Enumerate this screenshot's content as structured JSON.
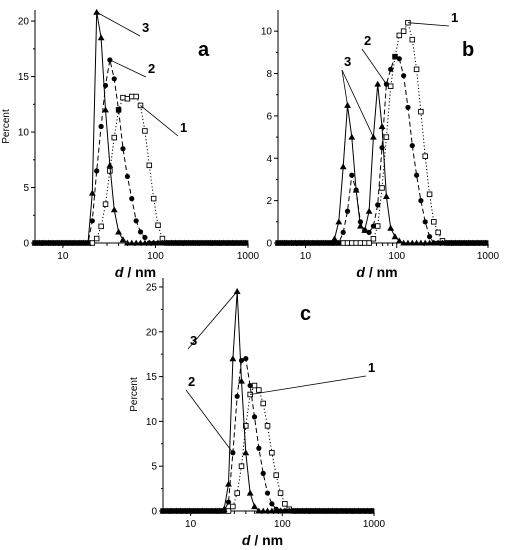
{
  "chart_data": [
    {
      "type": "line",
      "panel_label": "a",
      "xlabel_var": "d",
      "xlabel_unit": " / nm",
      "ylabel": "Percent",
      "x_scale": "log",
      "xlim": [
        5,
        1000
      ],
      "ylim": [
        0,
        21
      ],
      "xticks": [
        10,
        100,
        1000
      ],
      "xtick_labels": [
        "10",
        "100",
        "1000"
      ],
      "yticks": [
        0,
        5,
        10,
        15,
        20
      ],
      "ytick_labels": [
        "0",
        "5",
        "10",
        "15",
        "20"
      ],
      "series": [
        {
          "name": "1",
          "marker": "open-square",
          "dash": "dotted",
          "label_pos": [
            95,
            10.2
          ],
          "x": [
            5,
            5.6,
            6.2,
            7,
            7.8,
            8.7,
            9.7,
            10.8,
            12,
            13.4,
            15,
            16.7,
            18.7,
            20.8,
            23.2,
            25.9,
            28.9,
            32.2,
            35.9,
            40,
            44.6,
            49.8,
            55.5,
            61.9,
            69,
            77,
            85.8,
            95.7,
            106.7,
            119,
            132.7,
            148,
            165,
            184,
            205,
            229,
            255,
            284,
            317,
            354,
            394,
            440,
            490,
            547,
            610,
            680,
            758,
            845,
            943
          ],
          "y": [
            0,
            0,
            0,
            0,
            0,
            0,
            0,
            0,
            0,
            0,
            0,
            0,
            0,
            0,
            0.4,
            1.5,
            3.5,
            6.5,
            9.5,
            12.0,
            13.1,
            13.0,
            13.2,
            13.2,
            12.4,
            10.1,
            7.0,
            4.0,
            1.6,
            0.4,
            0,
            0,
            0,
            0,
            0,
            0,
            0,
            0,
            0,
            0,
            0,
            0,
            0,
            0,
            0,
            0,
            0,
            0,
            0
          ]
        },
        {
          "name": "2",
          "marker": "filled-circle",
          "dash": "dashed",
          "label_pos": [
            54,
            17.2
          ],
          "x": [
            5,
            5.6,
            6.2,
            7,
            7.8,
            8.7,
            9.7,
            10.8,
            12,
            13.4,
            15,
            16.7,
            18.7,
            20.8,
            23.2,
            25.9,
            28.9,
            32.2,
            35.9,
            40,
            44.6,
            49.8,
            55.5,
            61.9,
            69,
            77,
            85.8,
            95.7,
            106.7,
            119,
            132.7,
            148,
            165,
            184,
            205,
            229,
            255,
            284,
            317,
            354,
            394,
            440,
            490,
            547,
            610,
            680,
            758,
            845,
            943
          ],
          "y": [
            0,
            0,
            0,
            0,
            0,
            0,
            0,
            0,
            0,
            0,
            0,
            0,
            0,
            2.0,
            6.5,
            10.5,
            14.2,
            16.5,
            14.8,
            12.0,
            8.5,
            6.0,
            4.0,
            2.0,
            1.0,
            0.5,
            0,
            0,
            0,
            0,
            0,
            0,
            0,
            0,
            0,
            0,
            0,
            0,
            0,
            0,
            0,
            0,
            0,
            0,
            0,
            0,
            0,
            0,
            0
          ]
        },
        {
          "name": "3",
          "marker": "filled-triangle",
          "dash": "solid",
          "label_pos": [
            34,
            20.2
          ],
          "x": [
            5,
            5.6,
            6.2,
            7,
            7.8,
            8.7,
            9.7,
            10.8,
            12,
            13.4,
            15,
            16.7,
            18.7,
            20.8,
            23.2,
            25.9,
            28.9,
            32.2,
            35.9,
            40,
            44.6,
            49.8,
            55.5,
            61.9,
            69,
            77,
            85.8,
            95.7,
            106.7,
            119,
            132.7,
            148,
            165,
            184,
            205,
            229,
            255,
            284,
            317,
            354,
            394,
            440,
            490,
            547,
            610,
            680,
            758,
            845,
            943
          ],
          "y": [
            0,
            0,
            0,
            0,
            0,
            0,
            0,
            0,
            0,
            0,
            0,
            0,
            0,
            4.5,
            20.8,
            18.5,
            12.0,
            7.0,
            3.0,
            1.0,
            0.3,
            0,
            0,
            0,
            0,
            0,
            0,
            0,
            0,
            0,
            0,
            0,
            0,
            0,
            0,
            0,
            0,
            0,
            0,
            0,
            0,
            0,
            0,
            0,
            0,
            0,
            0,
            0,
            0
          ]
        }
      ]
    },
    {
      "type": "line",
      "panel_label": "b",
      "xlabel_var": "d",
      "xlabel_unit": " / nm",
      "ylabel": "",
      "x_scale": "log",
      "xlim": [
        5,
        1000
      ],
      "ylim": [
        0,
        11
      ],
      "xticks": [
        10,
        100,
        1000
      ],
      "xtick_labels": [
        "10",
        "100",
        "1000"
      ],
      "yticks": [
        0,
        2,
        4,
        6,
        8,
        10
      ],
      "ytick_labels": [
        "0",
        "2",
        "4",
        "6",
        "8",
        "10"
      ],
      "series": [
        {
          "name": "1",
          "marker": "open-square",
          "dash": "dotted",
          "label_pos": [
            265,
            9.8
          ],
          "x": [
            5,
            5.6,
            6.2,
            7,
            7.8,
            8.7,
            9.7,
            10.8,
            12,
            13.4,
            15,
            16.7,
            18.7,
            20.8,
            23.2,
            25.9,
            28.9,
            32.2,
            35.9,
            40,
            44.6,
            49.8,
            55.5,
            61.9,
            69,
            77,
            85.8,
            95.7,
            106.7,
            119,
            132.7,
            148,
            165,
            184,
            205,
            229,
            255,
            284,
            317,
            354,
            394,
            440,
            490,
            547,
            610,
            680,
            758,
            845,
            943
          ],
          "y": [
            0,
            0,
            0,
            0,
            0,
            0,
            0,
            0,
            0,
            0,
            0,
            0,
            0,
            0,
            0,
            0,
            0,
            0,
            0,
            0,
            0,
            0,
            0.2,
            0.8,
            2.6,
            5.0,
            7.4,
            8.8,
            9.8,
            10.0,
            10.4,
            9.6,
            8.2,
            6.2,
            4.1,
            2.3,
            1.0,
            0.5,
            0.1,
            0,
            0,
            0,
            0,
            0,
            0,
            0,
            0,
            0,
            0
          ]
        },
        {
          "name": "2",
          "marker": "filled-circle",
          "dash": "dashed",
          "label_pos": [
            60,
            8.2
          ],
          "x": [
            5,
            5.6,
            6.2,
            7,
            7.8,
            8.7,
            9.7,
            10.8,
            12,
            13.4,
            15,
            16.7,
            18.7,
            20.8,
            23.2,
            25.9,
            28.9,
            32.2,
            35.9,
            40,
            44.6,
            49.8,
            55.5,
            61.9,
            69,
            77,
            85.8,
            95.7,
            106.7,
            119,
            132.7,
            148,
            165,
            184,
            205,
            229,
            255,
            284,
            317,
            354,
            394,
            440,
            490,
            547,
            610,
            680,
            758,
            845,
            943
          ],
          "y": [
            0,
            0,
            0,
            0,
            0,
            0,
            0,
            0,
            0,
            0,
            0,
            0,
            0,
            0,
            0,
            0.5,
            1.5,
            3.2,
            2.5,
            1.0,
            0.6,
            0.5,
            0.8,
            1.8,
            4.5,
            7.5,
            8.2,
            8.8,
            8.7,
            7.9,
            6.4,
            4.6,
            3.2,
            2.0,
            1.0,
            0.3,
            0,
            0,
            0,
            0,
            0,
            0,
            0,
            0,
            0,
            0,
            0,
            0,
            0
          ]
        },
        {
          "name": "3",
          "marker": "filled-triangle",
          "dash": "solid",
          "label_pos": [
            20,
            7.8
          ],
          "x": [
            5,
            5.6,
            6.2,
            7,
            7.8,
            8.7,
            9.7,
            10.8,
            12,
            13.4,
            15,
            16.7,
            18.7,
            20.8,
            23.2,
            25.9,
            28.9,
            32.2,
            35.9,
            40,
            44.6,
            49.8,
            55.5,
            61.9,
            69,
            77,
            85.8,
            95.7,
            106.7,
            119,
            132.7,
            148,
            165,
            184,
            205,
            229,
            255,
            284,
            317,
            354,
            394,
            440,
            490,
            547,
            610,
            680,
            758,
            845,
            943
          ],
          "y": [
            0,
            0,
            0,
            0,
            0,
            0,
            0,
            0,
            0,
            0,
            0,
            0,
            0,
            0.2,
            1.0,
            3.6,
            6.5,
            5.0,
            2.5,
            0.8,
            0.6,
            1.5,
            5.0,
            7.5,
            5.5,
            2.2,
            0.7,
            0.3,
            0.1,
            0,
            0,
            0,
            0,
            0,
            0,
            0,
            0,
            0,
            0,
            0,
            0,
            0,
            0,
            0,
            0,
            0,
            0,
            0,
            0
          ]
        }
      ]
    },
    {
      "type": "line",
      "panel_label": "c",
      "xlabel_var": "d",
      "xlabel_unit": " / nm",
      "ylabel": "Percent",
      "x_scale": "log",
      "xlim": [
        5,
        1000
      ],
      "ylim": [
        0,
        26
      ],
      "xticks": [
        10,
        100,
        1000
      ],
      "xtick_labels": [
        "10",
        "100",
        "1000"
      ],
      "yticks": [
        0,
        5,
        10,
        15,
        20,
        25
      ],
      "ytick_labels": [
        "0",
        "5",
        "10",
        "15",
        "20",
        "25"
      ],
      "series": [
        {
          "name": "1",
          "marker": "open-square",
          "dash": "dotted",
          "label_pos": [
            135,
            17.0
          ],
          "x": [
            5,
            5.6,
            6.2,
            7,
            7.8,
            8.7,
            9.7,
            10.8,
            12,
            13.4,
            15,
            16.7,
            18.7,
            20.8,
            23.2,
            25.9,
            28.9,
            32.2,
            35.9,
            40,
            44.6,
            49.8,
            55.5,
            61.9,
            69,
            77,
            85.8,
            95.7,
            106.7,
            119,
            132.7,
            148,
            165,
            184,
            205,
            229,
            255,
            284,
            317,
            354,
            394,
            440,
            490,
            547,
            610,
            680,
            758,
            845,
            943
          ],
          "y": [
            0,
            0,
            0,
            0,
            0,
            0,
            0,
            0,
            0,
            0,
            0,
            0,
            0,
            0,
            0,
            0,
            0.5,
            2.0,
            5.0,
            9.5,
            13.0,
            14.0,
            13.5,
            12.0,
            9.5,
            6.5,
            4.0,
            2.0,
            0.8,
            0.2,
            0,
            0,
            0,
            0,
            0,
            0,
            0,
            0,
            0,
            0,
            0,
            0,
            0,
            0,
            0,
            0,
            0,
            0,
            0
          ]
        },
        {
          "name": "2",
          "marker": "filled-circle",
          "dash": "dashed",
          "label_pos": [
            17,
            14.5
          ],
          "x": [
            5,
            5.6,
            6.2,
            7,
            7.8,
            8.7,
            9.7,
            10.8,
            12,
            13.4,
            15,
            16.7,
            18.7,
            20.8,
            23.2,
            25.9,
            28.9,
            32.2,
            35.9,
            40,
            44.6,
            49.8,
            55.5,
            61.9,
            69,
            77,
            85.8,
            95.7,
            106.7,
            119,
            132.7,
            148,
            165,
            184,
            205,
            229,
            255,
            284,
            317,
            354,
            394,
            440,
            490,
            547,
            610,
            680,
            758,
            845,
            943
          ],
          "y": [
            0,
            0,
            0,
            0,
            0,
            0,
            0,
            0,
            0,
            0,
            0,
            0,
            0,
            0,
            0,
            1.0,
            6.5,
            12.8,
            16.8,
            17.0,
            14.0,
            10.5,
            7.0,
            4.2,
            2.0,
            0.8,
            0.2,
            0,
            0,
            0,
            0,
            0,
            0,
            0,
            0,
            0,
            0,
            0,
            0,
            0,
            0,
            0,
            0,
            0,
            0,
            0,
            0,
            0,
            0
          ]
        },
        {
          "name": "3",
          "marker": "filled-triangle",
          "dash": "solid",
          "label_pos": [
            17,
            20.2
          ],
          "x": [
            5,
            5.6,
            6.2,
            7,
            7.8,
            8.7,
            9.7,
            10.8,
            12,
            13.4,
            15,
            16.7,
            18.7,
            20.8,
            23.2,
            25.9,
            28.9,
            32.2,
            35.9,
            40,
            44.6,
            49.8,
            55.5,
            61.9,
            69,
            77,
            85.8,
            95.7,
            106.7,
            119,
            132.7,
            148,
            165,
            184,
            205,
            229,
            255,
            284,
            317,
            354,
            394,
            440,
            490,
            547,
            610,
            680,
            758,
            845,
            943
          ],
          "y": [
            0,
            0,
            0,
            0,
            0,
            0,
            0,
            0,
            0,
            0,
            0,
            0,
            0,
            0,
            0.2,
            3.0,
            17.0,
            24.5,
            14.5,
            6.5,
            2.0,
            0.5,
            0,
            0,
            0,
            0,
            0,
            0,
            0,
            0,
            0,
            0,
            0,
            0,
            0,
            0,
            0,
            0,
            0,
            0,
            0,
            0,
            0,
            0,
            0,
            0,
            0,
            0,
            0
          ]
        }
      ]
    }
  ]
}
